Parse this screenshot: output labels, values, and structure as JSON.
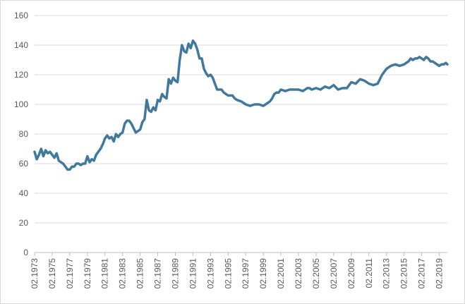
{
  "chart_data": {
    "type": "line",
    "title": "",
    "xlabel": "",
    "ylabel": "",
    "ylim": [
      0,
      160
    ],
    "yticks": [
      0,
      20,
      40,
      60,
      80,
      100,
      120,
      140,
      160
    ],
    "xlim": [
      1973.08,
      2020.0
    ],
    "xticks": [
      {
        "x": 1973.08,
        "label": "02.1973"
      },
      {
        "x": 1975.08,
        "label": "02.1975"
      },
      {
        "x": 1977.08,
        "label": "02.1977"
      },
      {
        "x": 1979.08,
        "label": "02.1979"
      },
      {
        "x": 1981.08,
        "label": "02.1981"
      },
      {
        "x": 1983.08,
        "label": "02.1983"
      },
      {
        "x": 1985.08,
        "label": "02.1985"
      },
      {
        "x": 1987.08,
        "label": "02.1987"
      },
      {
        "x": 1989.08,
        "label": "02.1989"
      },
      {
        "x": 1991.08,
        "label": "02.1991"
      },
      {
        "x": 1993.08,
        "label": "02.1993"
      },
      {
        "x": 1995.08,
        "label": "02.1995"
      },
      {
        "x": 1997.08,
        "label": "02.1997"
      },
      {
        "x": 1999.08,
        "label": "02.1999"
      },
      {
        "x": 2001.08,
        "label": "02.2001"
      },
      {
        "x": 2003.08,
        "label": "02.2003"
      },
      {
        "x": 2005.08,
        "label": "02.2005"
      },
      {
        "x": 2007.08,
        "label": "02.2007"
      },
      {
        "x": 2009.08,
        "label": "02.2009"
      },
      {
        "x": 2011.08,
        "label": "02.2011"
      },
      {
        "x": 2013.08,
        "label": "02.2013"
      },
      {
        "x": 2015.08,
        "label": "02.2015"
      },
      {
        "x": 2017.08,
        "label": "02.2017"
      },
      {
        "x": 2019.08,
        "label": "02.2019"
      }
    ],
    "grid": "horizontal",
    "legend": "none",
    "series": [
      {
        "color": "#41799e",
        "x": [
          1973.08,
          1973.33,
          1973.58,
          1973.83,
          1974.08,
          1974.33,
          1974.58,
          1974.83,
          1975.08,
          1975.33,
          1975.58,
          1975.83,
          1976.08,
          1976.33,
          1976.58,
          1976.83,
          1977.08,
          1977.33,
          1977.58,
          1977.83,
          1978.08,
          1978.33,
          1978.58,
          1978.83,
          1979.08,
          1979.33,
          1979.58,
          1979.83,
          1980.08,
          1980.33,
          1980.58,
          1980.83,
          1981.08,
          1981.33,
          1981.58,
          1981.83,
          1982.08,
          1982.33,
          1982.58,
          1982.83,
          1983.08,
          1983.33,
          1983.58,
          1983.83,
          1984.08,
          1984.33,
          1984.58,
          1984.83,
          1985.08,
          1985.33,
          1985.58,
          1985.83,
          1986.08,
          1986.33,
          1986.58,
          1986.83,
          1987.08,
          1987.33,
          1987.58,
          1987.83,
          1988.08,
          1988.33,
          1988.58,
          1988.83,
          1989.08,
          1989.33,
          1989.58,
          1989.83,
          1990.08,
          1990.33,
          1990.58,
          1990.83,
          1991.08,
          1991.33,
          1991.58,
          1991.83,
          1992.08,
          1992.33,
          1992.58,
          1992.83,
          1993.08,
          1993.33,
          1993.58,
          1993.83,
          1994.08,
          1994.33,
          1994.58,
          1994.83,
          1995.08,
          1995.33,
          1995.58,
          1995.83,
          1996.08,
          1996.58,
          1997.08,
          1997.58,
          1998.08,
          1998.58,
          1999.08,
          1999.33,
          1999.58,
          1999.83,
          2000.08,
          2000.33,
          2000.58,
          2000.83,
          2001.08,
          2001.58,
          2002.08,
          2002.33,
          2002.58,
          2003.08,
          2003.58,
          2004.08,
          2004.33,
          2004.58,
          2005.08,
          2005.58,
          2006.08,
          2006.58,
          2007.08,
          2007.58,
          2008.08,
          2008.58,
          2009.08,
          2009.58,
          2010.08,
          2010.58,
          2011.08,
          2011.58,
          2012.08,
          2012.58,
          2013.08,
          2013.58,
          2014.08,
          2014.58,
          2015.08,
          2015.33,
          2015.58,
          2015.83,
          2016.08,
          2016.33,
          2016.58,
          2016.83,
          2017.08,
          2017.33,
          2017.58,
          2017.83,
          2018.08,
          2018.33,
          2018.58,
          2018.83,
          2019.08,
          2019.33,
          2019.58,
          2019.83,
          2020.0
        ],
        "values": [
          68,
          63,
          66,
          70,
          65,
          69,
          67,
          68,
          66,
          64,
          67,
          62,
          61,
          60,
          58,
          56,
          56,
          58,
          58,
          60,
          60,
          59,
          60,
          60,
          65,
          61,
          63,
          62,
          66,
          68,
          70,
          73,
          77,
          79,
          77,
          78,
          75,
          80,
          78,
          80,
          81,
          87,
          89,
          89,
          87,
          84,
          81,
          82,
          83,
          88,
          90,
          103,
          96,
          95,
          98,
          96,
          103,
          102,
          107,
          105,
          104,
          117,
          114,
          118,
          116,
          115,
          130,
          140,
          136,
          135,
          141,
          138,
          143,
          141,
          137,
          131,
          131,
          124,
          121,
          119,
          120,
          118,
          114,
          110,
          110,
          110,
          108,
          107,
          106,
          106,
          106,
          104,
          103,
          102,
          100,
          99,
          100,
          100,
          99,
          100,
          101,
          102,
          104,
          107,
          108,
          108,
          110,
          109,
          110,
          110,
          110,
          110,
          109,
          111,
          111,
          110,
          111,
          110,
          112,
          111,
          113,
          110,
          111,
          111,
          115,
          114,
          117,
          116,
          114,
          113,
          114,
          120,
          124,
          126,
          127,
          126,
          127,
          128,
          129,
          131,
          130,
          131,
          131,
          132,
          131,
          130,
          132,
          131,
          129,
          129,
          128,
          127,
          126,
          127,
          127,
          128,
          127
        ]
      }
    ]
  }
}
